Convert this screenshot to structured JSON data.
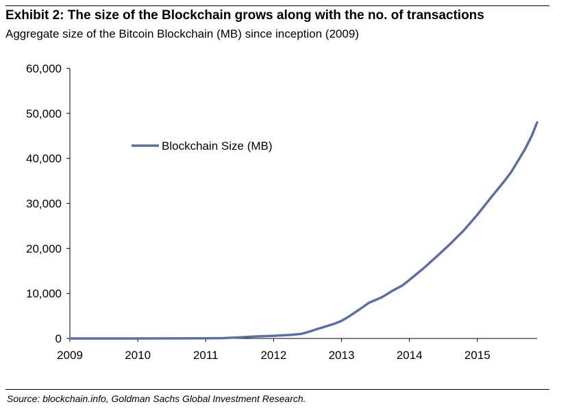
{
  "header": {
    "title": "Exhibit 2: The size of the Blockchain grows along with the no. of transactions",
    "subtitle": "Aggregate size of the Bitcoin Blockchain (MB) since inception (2009)"
  },
  "footer": {
    "source": "Source: blockchain.info, Goldman Sachs Global Investment Research."
  },
  "colors": {
    "series": "#5b6fa4",
    "axis": "#000000"
  },
  "chart_data": {
    "type": "line",
    "title": "Exhibit 2: The size of the Blockchain grows along with the no. of transactions",
    "subtitle": "Aggregate size of the Bitcoin Blockchain (MB) since inception (2009)",
    "xlabel": "",
    "ylabel": "",
    "xlim": [
      2009,
      2015.88
    ],
    "ylim": [
      0,
      60000
    ],
    "x_ticks": [
      "2009",
      "2010",
      "2011",
      "2012",
      "2013",
      "2014",
      "2015"
    ],
    "y_ticks": [
      "0",
      "10,000",
      "20,000",
      "30,000",
      "40,000",
      "50,000",
      "60,000"
    ],
    "grid": false,
    "legend": "upper-left inside",
    "series": [
      {
        "name": "Blockchain Size (MB)",
        "x": [
          2009.0,
          2009.5,
          2010.0,
          2010.5,
          2011.0,
          2011.25,
          2011.5,
          2011.75,
          2012.0,
          2012.25,
          2012.4,
          2012.5,
          2012.6,
          2012.75,
          2012.9,
          2013.0,
          2013.1,
          2013.25,
          2013.4,
          2013.6,
          2013.75,
          2013.9,
          2014.0,
          2014.2,
          2014.4,
          2014.6,
          2014.8,
          2015.0,
          2015.2,
          2015.4,
          2015.5,
          2015.6,
          2015.7,
          2015.8,
          2015.88
        ],
        "y": [
          0,
          0,
          5,
          10,
          30,
          80,
          250,
          450,
          600,
          800,
          1000,
          1400,
          1900,
          2600,
          3300,
          3900,
          4800,
          6300,
          7900,
          9200,
          10600,
          11800,
          13000,
          15500,
          18200,
          21000,
          24000,
          27500,
          31300,
          35000,
          37000,
          39500,
          42000,
          45000,
          48000
        ]
      }
    ]
  }
}
